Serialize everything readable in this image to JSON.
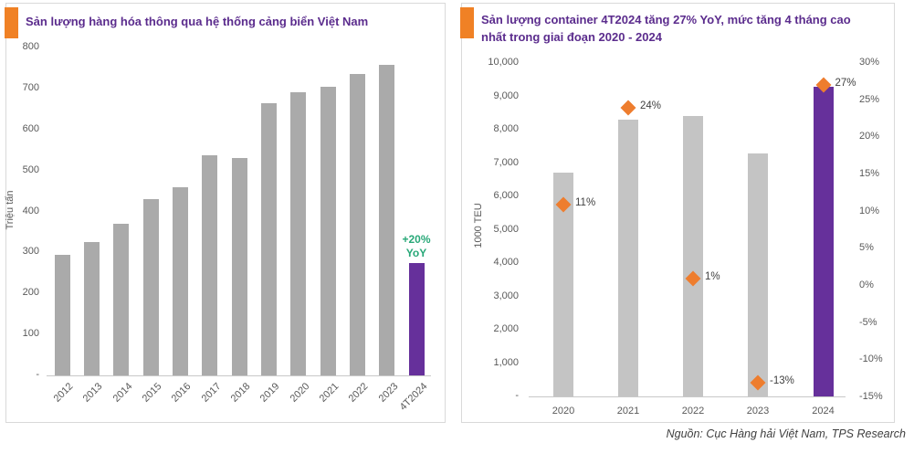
{
  "source_note": "Nguồn: Cục Hàng hải Việt Nam, TPS Research",
  "colors": {
    "accent_orange": "#F08125",
    "title_purple": "#5B2C8D",
    "bar_gray_left": "#AAAAAA",
    "bar_gray_right": "#C4C4C4",
    "bar_purple": "#66309B",
    "marker_orange": "#EE7D2E",
    "annotation_green": "#28A878",
    "axis_text": "#595959",
    "axis_line": "#C8C8C8",
    "source_text": "#3F3F3F"
  },
  "chart_data": [
    {
      "type": "bar",
      "title": "Sản lượng hàng hóa thông qua hệ thống cảng biển Việt Nam",
      "ylabel": "Triệu tấn",
      "categories": [
        "2012",
        "2013",
        "2014",
        "2015",
        "2016",
        "2017",
        "2018",
        "2019",
        "2020",
        "2021",
        "2022",
        "2023",
        "4T2024"
      ],
      "values": [
        295,
        325,
        370,
        430,
        460,
        537,
        530,
        665,
        690,
        705,
        735,
        757,
        275
      ],
      "ylim": [
        0,
        800
      ],
      "ytick_values": [
        800,
        700,
        600,
        500,
        400,
        300,
        200,
        100,
        0
      ],
      "ytick_labels": [
        "800",
        "700",
        "600",
        "500",
        "400",
        "300",
        "200",
        "100",
        "-"
      ],
      "grid": false,
      "legend": "none",
      "highlight_index": 12,
      "annotation": {
        "lines": [
          "+20%",
          "YoY"
        ],
        "target": "4T2024"
      }
    },
    {
      "type": "combo-bar-scatter",
      "title": "Sản lượng container 4T2024 tăng 27% YoY, mức tăng 4 tháng cao nhất trong giai đoạn 2020 - 2024",
      "ylabel_left": "1000 TEU",
      "categories": [
        "2020",
        "2021",
        "2022",
        "2023",
        "2024"
      ],
      "series": [
        {
          "type": "bar",
          "axis": "left",
          "values": [
            6700,
            8300,
            8400,
            7300,
            9300
          ]
        },
        {
          "type": "scatter",
          "axis": "right",
          "values": [
            11,
            24,
            1,
            -13,
            27
          ],
          "labels": [
            "11%",
            "24%",
            "1%",
            "-13%",
            "27%"
          ]
        }
      ],
      "ylim_left": [
        0,
        10000
      ],
      "ytick_values_left": [
        10000,
        9000,
        8000,
        7000,
        6000,
        5000,
        4000,
        3000,
        2000,
        1000,
        0
      ],
      "ytick_labels_left": [
        "10,000",
        "9,000",
        "8,000",
        "7,000",
        "6,000",
        "5,000",
        "4,000",
        "3,000",
        "2,000",
        "1,000",
        "-"
      ],
      "ylim_right": [
        -15,
        30
      ],
      "ytick_values_right": [
        30,
        25,
        20,
        15,
        10,
        5,
        0,
        -5,
        -10,
        -15
      ],
      "ytick_labels_right": [
        "30%",
        "25%",
        "20%",
        "15%",
        "10%",
        "5%",
        "0%",
        "-5%",
        "-10%",
        "-15%"
      ],
      "grid": false,
      "legend": "none",
      "highlight_index": 4
    }
  ]
}
